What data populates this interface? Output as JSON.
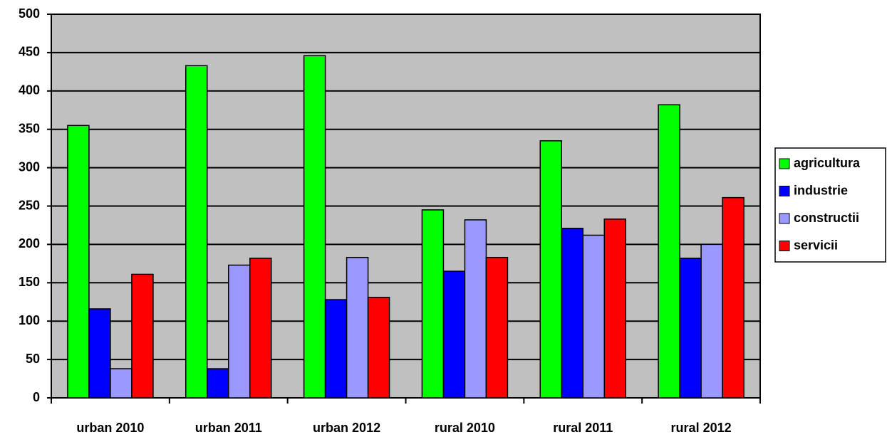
{
  "chart_data": {
    "type": "bar",
    "categories": [
      "urban 2010",
      "urban 2011",
      "urban 2012",
      "rural 2010",
      "rural 2011",
      "rural 2012"
    ],
    "series": [
      {
        "name": "agricultura",
        "color": "#00ff00",
        "values": [
          355,
          433,
          446,
          245,
          335,
          382
        ]
      },
      {
        "name": "industrie",
        "color": "#0000ff",
        "values": [
          116,
          38,
          128,
          165,
          221,
          182
        ]
      },
      {
        "name": "constructii",
        "color": "#9999ff",
        "values": [
          38,
          173,
          183,
          232,
          212,
          200
        ]
      },
      {
        "name": "servicii",
        "color": "#ff0000",
        "values": [
          161,
          182,
          131,
          183,
          233,
          261
        ]
      }
    ],
    "ylim": [
      0,
      500
    ],
    "yticks": [
      0,
      50,
      100,
      150,
      200,
      250,
      300,
      350,
      400,
      450,
      500
    ],
    "grid": true,
    "legend": "right"
  }
}
